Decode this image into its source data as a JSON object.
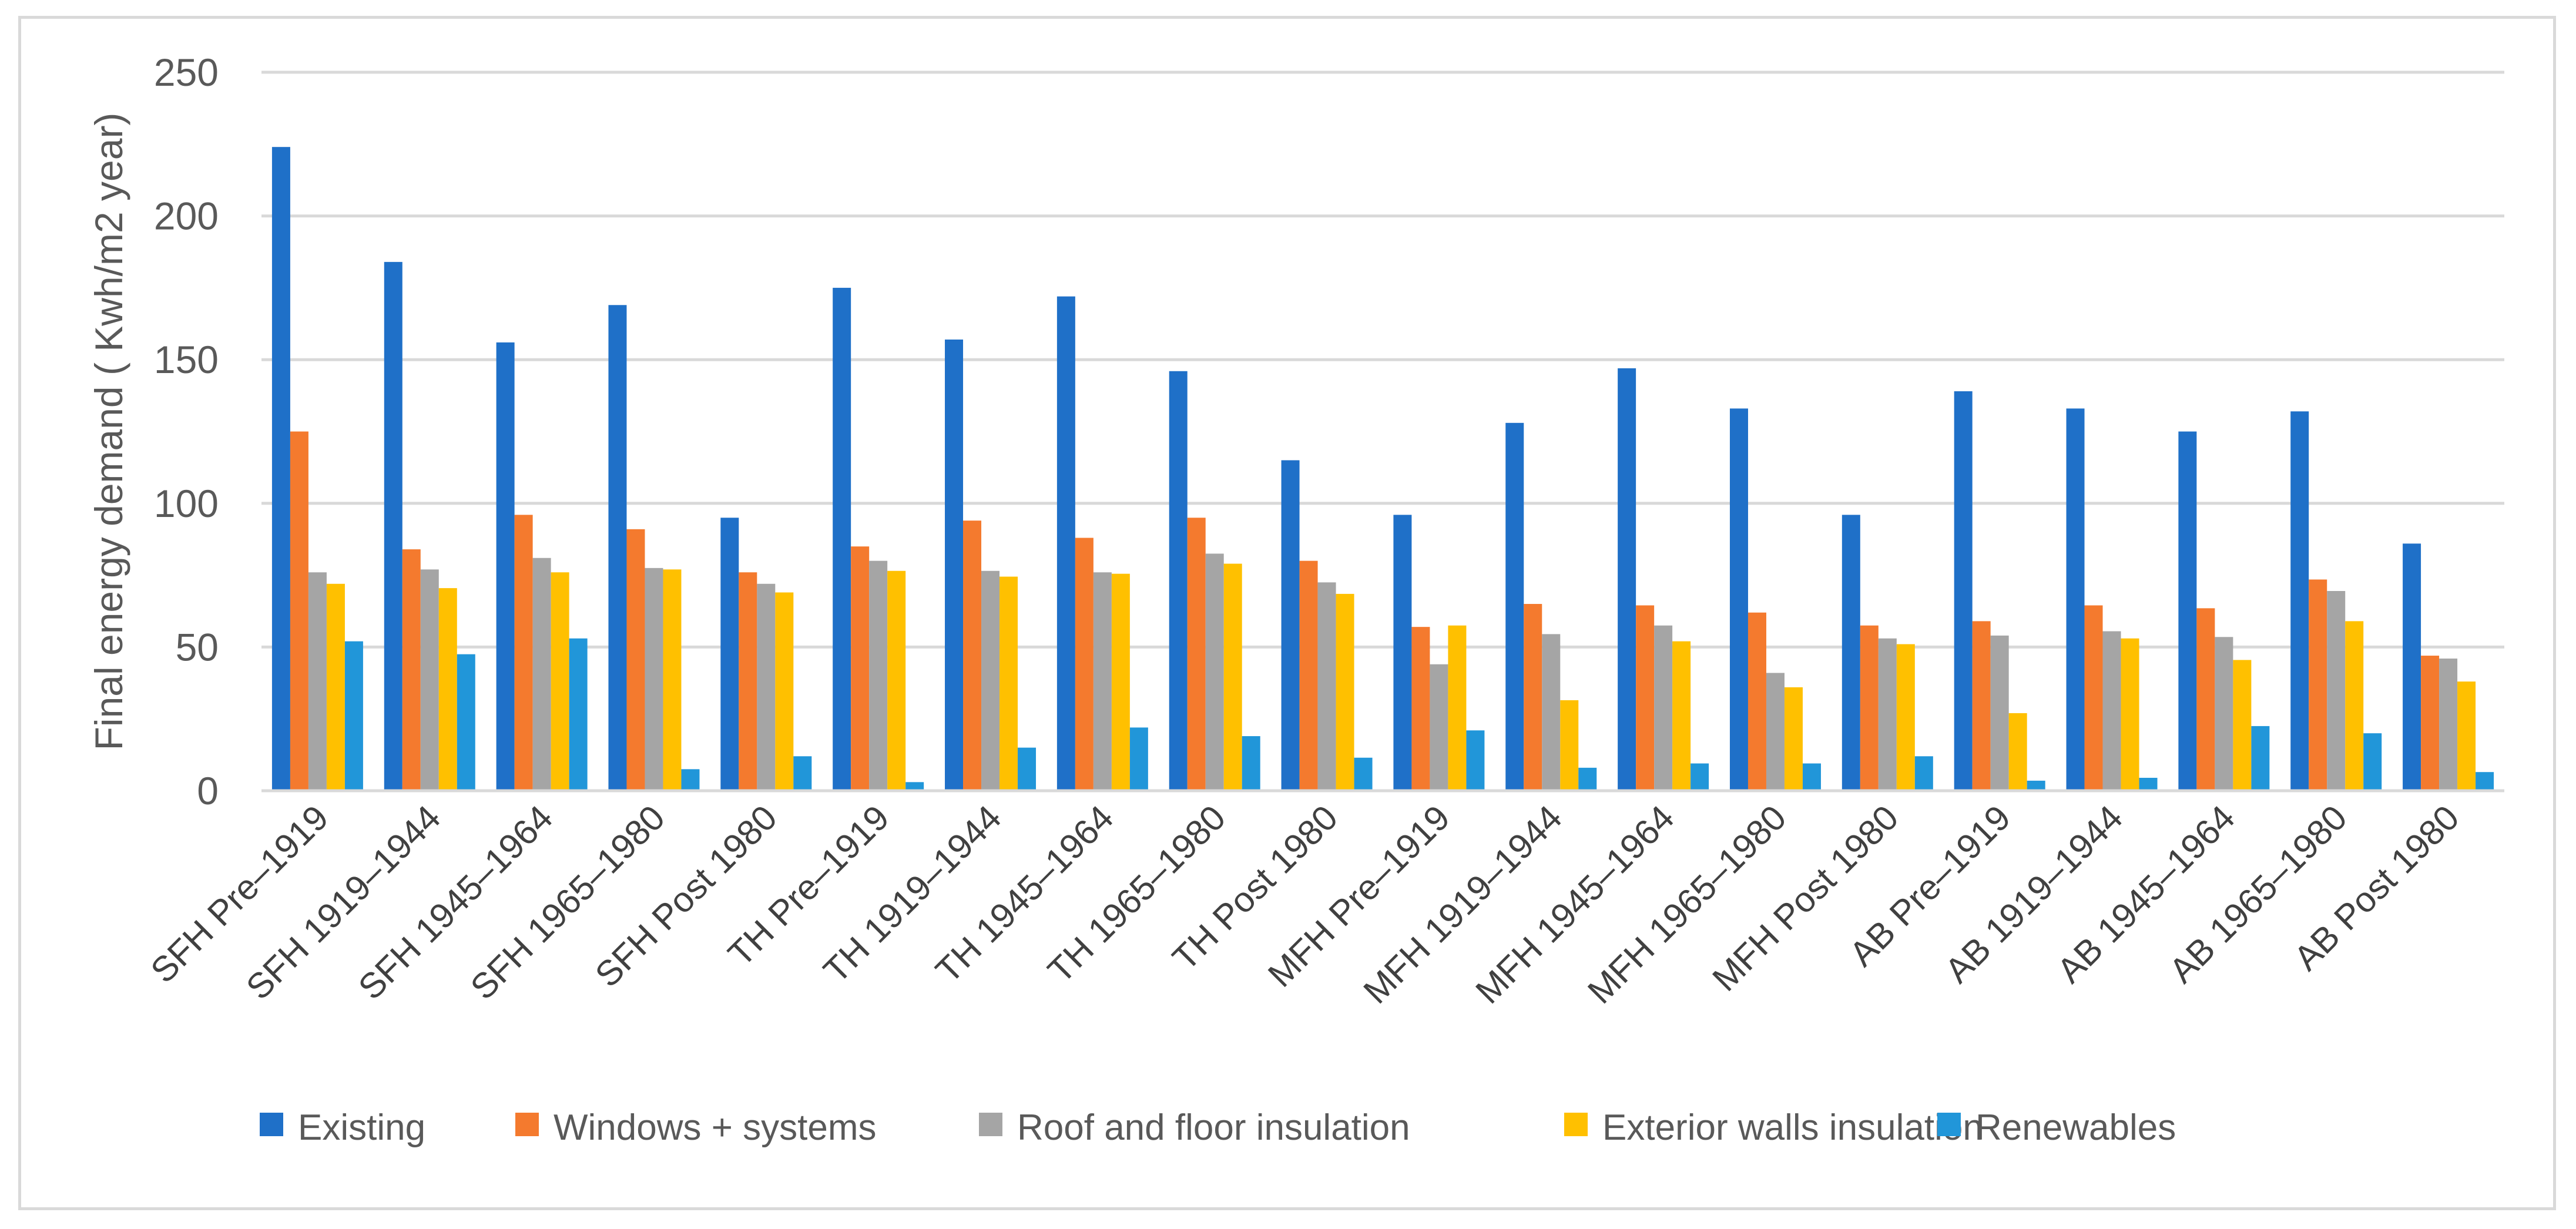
{
  "chart_data": {
    "type": "bar",
    "title": "",
    "xlabel": "",
    "ylabel": "Final energy demand ( Kwh/m2 year)",
    "ylim": [
      0,
      250
    ],
    "yticks": [
      0,
      50,
      100,
      150,
      200,
      250
    ],
    "grid": true,
    "legend_position": "bottom",
    "categories": [
      "SFH Pre–1919",
      "SFH 1919–1944",
      "SFH 1945–1964",
      "SFH 1965–1980",
      "SFH Post 1980",
      "TH Pre–1919",
      "TH 1919–1944",
      "TH 1945–1964",
      "TH 1965–1980",
      "TH Post 1980",
      "MFH Pre–1919",
      "MFH 1919–1944",
      "MFH 1945–1964",
      "MFH 1965–1980",
      "MFH Post 1980",
      "AB Pre–1919",
      "AB 1919–1944",
      "AB 1945–1964",
      "AB 1965–1980",
      "AB Post 1980"
    ],
    "series": [
      {
        "name": "Existing",
        "color": "#1f70c8",
        "values": [
          224,
          184,
          156,
          169,
          95,
          175,
          157,
          172,
          146,
          115,
          96,
          128,
          147,
          133,
          96,
          139,
          133,
          125,
          132,
          86
        ]
      },
      {
        "name": "Windows + systems",
        "color": "#f47a2e",
        "values": [
          125,
          84,
          96,
          91,
          76,
          85,
          94,
          88,
          95,
          80,
          57,
          65,
          64.5,
          62,
          57.5,
          59,
          64.5,
          63.5,
          73.5,
          47
        ]
      },
      {
        "name": "Roof and floor insulation",
        "color": "#a5a5a5",
        "values": [
          76,
          77,
          81,
          77.5,
          72,
          80,
          76.5,
          76,
          82.5,
          72.5,
          44,
          54.5,
          57.5,
          41,
          53,
          54,
          55.5,
          53.5,
          69.5,
          46
        ]
      },
      {
        "name": "Exterior walls insulation",
        "color": "#ffc000",
        "values": [
          72,
          70.5,
          76,
          77,
          69,
          76.5,
          74.5,
          75.5,
          79,
          68.5,
          57.5,
          31.5,
          52,
          36,
          51,
          27,
          53,
          45.5,
          59,
          38
        ]
      },
      {
        "name": "Renewables",
        "color": "#2196d9",
        "values": [
          52,
          47.5,
          53,
          7.5,
          12,
          3,
          15,
          22,
          19,
          11.5,
          21,
          8,
          9.5,
          9.5,
          12,
          3.5,
          4.5,
          22.5,
          20,
          6.5
        ]
      }
    ]
  }
}
